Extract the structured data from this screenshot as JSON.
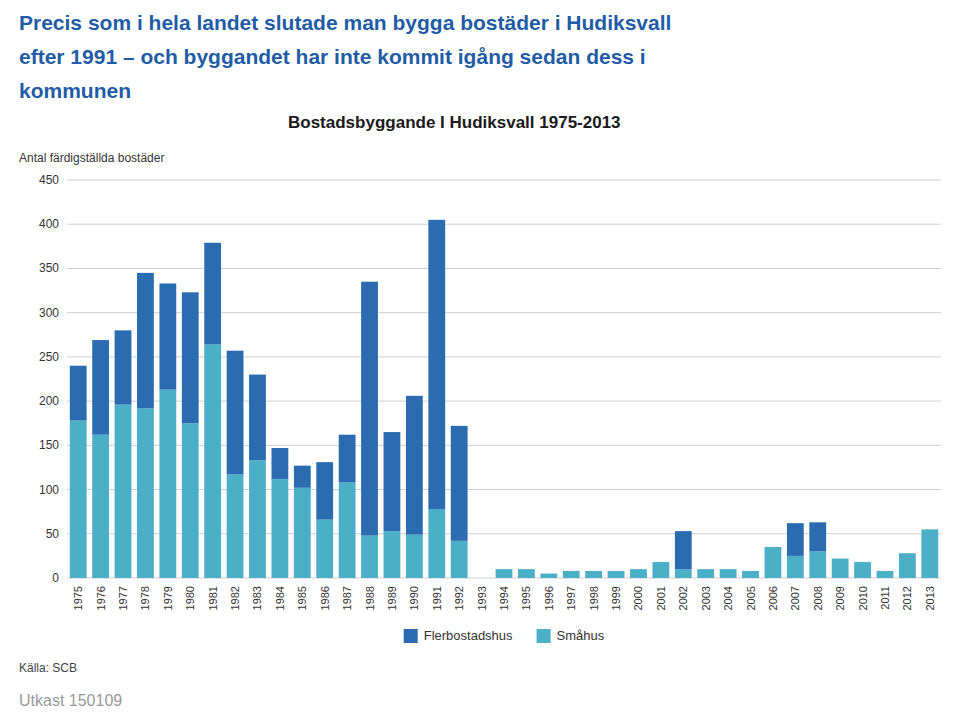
{
  "chart_data": {
    "type": "bar",
    "stacked": true,
    "title": "Bostadsbyggande I Hudiksvall 1975-2013",
    "annotations": [
      "Precis som i hela landet slutade man bygga bostäder i Hudiksvall",
      "efter 1991 – och byggandet har inte kommit igång sedan dess i",
      "kommunen",
      "Källa: SCB",
      "Utkast 150109"
    ],
    "ylabel": "Antal färdigställda bostäder",
    "categories": [
      1975,
      1976,
      1977,
      1978,
      1979,
      1980,
      1981,
      1982,
      1983,
      1984,
      1985,
      1986,
      1987,
      1988,
      1989,
      1990,
      1991,
      1992,
      1993,
      1994,
      1995,
      1996,
      1997,
      1998,
      1999,
      2000,
      2001,
      2002,
      2003,
      2004,
      2005,
      2006,
      2007,
      2008,
      2009,
      2010,
      2011,
      2012,
      2013
    ],
    "series": [
      {
        "name": "Småhus",
        "color": "#4BAFC8",
        "values": [
          178,
          162,
          196,
          192,
          213,
          175,
          264,
          117,
          133,
          112,
          102,
          66,
          108,
          48,
          53,
          49,
          78,
          42,
          0,
          10,
          10,
          5,
          8,
          8,
          8,
          10,
          18,
          10,
          10,
          10,
          8,
          35,
          25,
          30,
          22,
          18,
          8,
          28,
          55
        ]
      },
      {
        "name": "Flerbostadshus",
        "color": "#2B6CB0",
        "values": [
          62,
          107,
          84,
          153,
          120,
          148,
          115,
          140,
          97,
          35,
          25,
          65,
          54,
          287,
          112,
          157,
          327,
          130,
          0,
          0,
          0,
          0,
          0,
          0,
          0,
          0,
          0,
          43,
          0,
          0,
          0,
          0,
          37,
          33,
          0,
          0,
          0,
          0,
          0
        ]
      }
    ],
    "ylim": [
      0,
      450
    ],
    "yticks": [
      0,
      50,
      100,
      150,
      200,
      250,
      300,
      350,
      400,
      450
    ],
    "grid": true,
    "legend": "bottom"
  }
}
